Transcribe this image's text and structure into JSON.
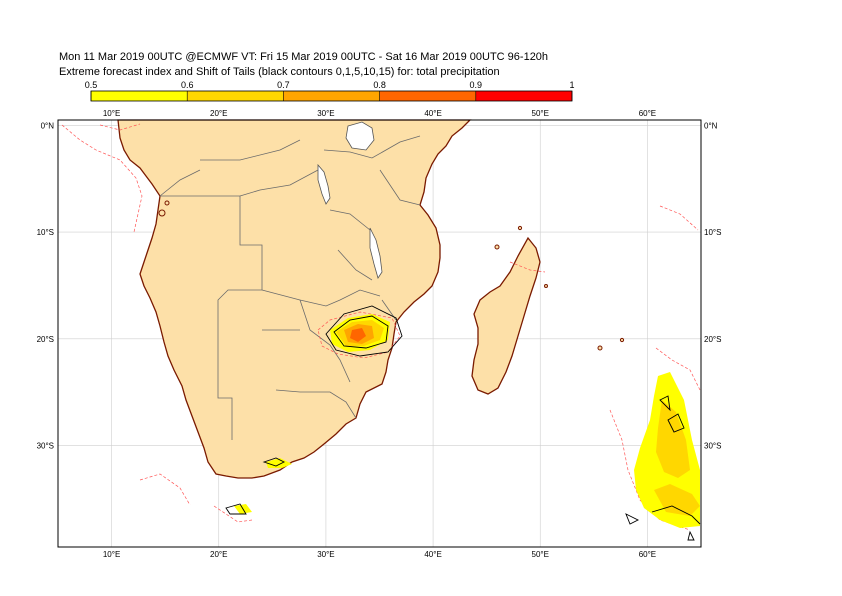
{
  "header": {
    "line1": "Mon 11 Mar 2019 00UTC @ECMWF VT: Fri 15 Mar 2019 00UTC - Sat 16 Mar 2019 00UTC  96-120h",
    "line2": "Extreme forecast index and Shift of Tails (black contours 0,1,5,10,15) for: total precipitation"
  },
  "colorbar": {
    "ticks": [
      "0.5",
      "0.6",
      "0.7",
      "0.8",
      "0.9",
      "1"
    ],
    "colors": [
      "#ffff00",
      "#ffd700",
      "#ffa500",
      "#ff6600",
      "#ff0000"
    ]
  },
  "map": {
    "lon_labels": [
      "10°E",
      "20°E",
      "30°E",
      "40°E",
      "50°E",
      "60°E"
    ],
    "lat_labels": [
      "0°N",
      "10°S",
      "20°S",
      "30°S"
    ],
    "lon_range": [
      5,
      65
    ],
    "lat_range": [
      -39.5,
      0.5
    ],
    "land_color": "#fde0a8",
    "coast_color": "#7a1a00",
    "border_color": "#6b6b6b",
    "efi_dashed_color": "#ff5555"
  }
}
